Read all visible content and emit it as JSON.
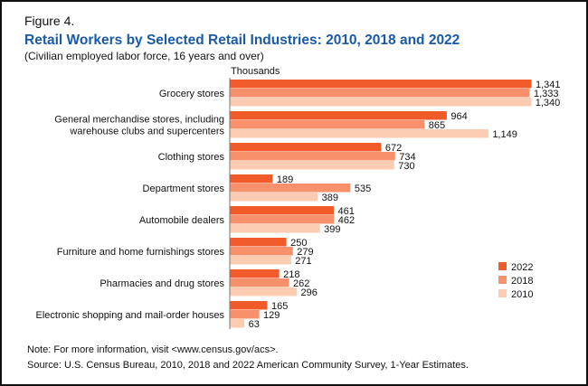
{
  "figure_label": "Figure 4.",
  "colors": {
    "2022": "#f15a29",
    "2018": "#f7906b",
    "2010": "#fbcbb2"
  },
  "chart_data": {
    "type": "bar",
    "orientation": "horizontal",
    "title": "Retail Workers by Selected Retail Industries: 2010, 2018 and 2022",
    "subtitle": "(Civilian employed labor force, 16 years and over)",
    "unit_label": "Thousands",
    "categories": [
      [
        "Grocery stores"
      ],
      [
        "General merchandise stores, including",
        "warehouse clubs and supercenters"
      ],
      [
        "Clothing stores"
      ],
      [
        "Department stores"
      ],
      [
        "Automobile dealers"
      ],
      [
        "Furniture and home furnishings stores"
      ],
      [
        "Pharmacies and drug stores"
      ],
      [
        "Electronic shopping and mail-order houses"
      ]
    ],
    "series": [
      {
        "name": "2022",
        "values": [
          1341,
          964,
          672,
          189,
          461,
          250,
          218,
          165
        ],
        "labels": [
          "1,341",
          "964",
          "672",
          "189",
          "461",
          "250",
          "218",
          "165"
        ]
      },
      {
        "name": "2018",
        "values": [
          1333,
          865,
          734,
          535,
          462,
          279,
          262,
          129
        ],
        "labels": [
          "1,333",
          "865",
          "734",
          "535",
          "462",
          "279",
          "262",
          "129"
        ]
      },
      {
        "name": "2010",
        "values": [
          1340,
          1149,
          730,
          389,
          399,
          271,
          296,
          63
        ],
        "labels": [
          "1,340",
          "1,149",
          "730",
          "389",
          "399",
          "271",
          "296",
          "63"
        ]
      }
    ],
    "xlim": [
      0,
      1341
    ],
    "grid": false,
    "legend_position": "bottom-right"
  },
  "note": "Note: For more information, visit <www.census.gov/acs>.",
  "source": "Source: U.S. Census Bureau, 2010, 2018 and 2022 American Community Survey, 1-Year Estimates."
}
